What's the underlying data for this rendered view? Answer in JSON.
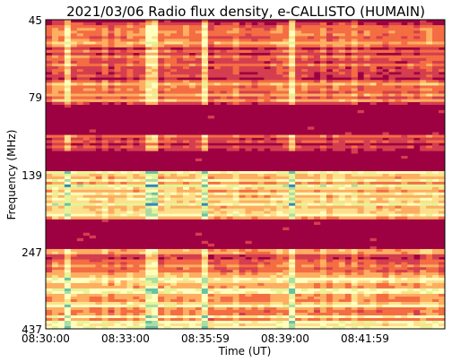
{
  "chart_data": {
    "type": "heatmap",
    "title": "2021/03/06  Radio flux density, e-CALLISTO (HUMAIN)",
    "xlabel": "Time (UT)",
    "ylabel": "Frequency (MHz)",
    "x_tick_labels": [
      "08:30:00",
      "08:33:00",
      "08:35:59",
      "08:39:00",
      "08:41:59"
    ],
    "y_tick_labels": [
      "45",
      "79",
      "139",
      "247",
      "437"
    ],
    "xlim": [
      "08:30:00",
      "08:45:00"
    ],
    "ylim": [
      45,
      437
    ],
    "colormap": [
      "#9e0142",
      "#d53e4f",
      "#f46d43",
      "#fdae61",
      "#fee08b",
      "#ffffbf",
      "#e6f598",
      "#abdda4",
      "#66c2a5",
      "#3288bd"
    ],
    "frequency_bands": [
      {
        "from_mhz": 45,
        "to_mhz": 73,
        "level": 0.22
      },
      {
        "from_mhz": 73,
        "to_mhz": 84,
        "level": 0.2
      },
      {
        "from_mhz": 84,
        "to_mhz": 105,
        "level": 0.0
      },
      {
        "from_mhz": 105,
        "to_mhz": 118,
        "level": 0.18
      },
      {
        "from_mhz": 118,
        "to_mhz": 137,
        "level": 0.0
      },
      {
        "from_mhz": 137,
        "to_mhz": 195,
        "level": 0.48
      },
      {
        "from_mhz": 195,
        "to_mhz": 243,
        "level": 0.0
      },
      {
        "from_mhz": 243,
        "to_mhz": 300,
        "level": 0.22
      },
      {
        "from_mhz": 300,
        "to_mhz": 437,
        "level": 0.42
      }
    ]
  }
}
